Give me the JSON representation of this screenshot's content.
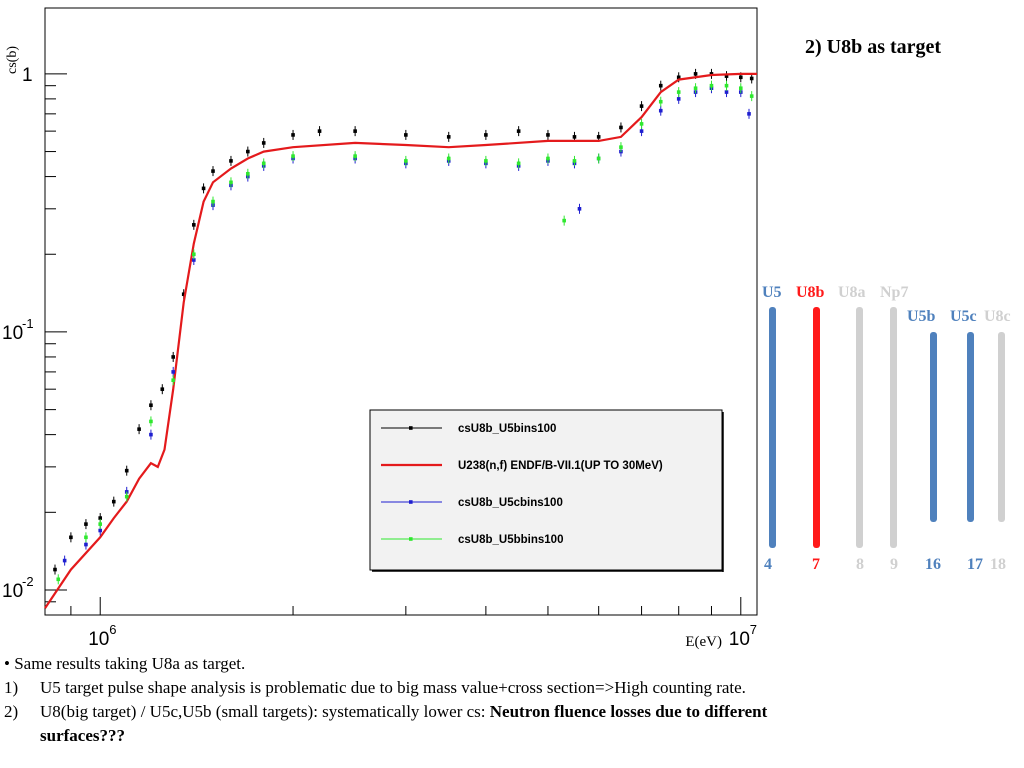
{
  "chart_data": {
    "type": "scatter",
    "xscale": "log",
    "yscale": "log",
    "xlim": [
      820000,
      10600000
    ],
    "ylim": [
      0.008,
      1.8
    ],
    "xlabel": "E(eV)",
    "ylabel": "cs(b)",
    "x_ticks": [
      {
        "value": 1000000,
        "label": "10",
        "exp": "6"
      },
      {
        "value": 10000000,
        "label": "10",
        "exp": "7"
      }
    ],
    "y_ticks": [
      {
        "value": 0.01,
        "label": "10",
        "exp": "-2"
      },
      {
        "value": 0.1,
        "label": "10",
        "exp": "-1"
      },
      {
        "value": 1,
        "label": "1",
        "exp": ""
      }
    ],
    "legend_position": "bottom-right",
    "series": [
      {
        "name": "csU8b_U5bins100",
        "color": "#000000",
        "kind": "points",
        "points": [
          [
            850000,
            0.012
          ],
          [
            900000,
            0.016
          ],
          [
            950000,
            0.018
          ],
          [
            1000000,
            0.019
          ],
          [
            1050000,
            0.022
          ],
          [
            1100000,
            0.029
          ],
          [
            1150000,
            0.042
          ],
          [
            1200000,
            0.052
          ],
          [
            1250000,
            0.06
          ],
          [
            1300000,
            0.08
          ],
          [
            1350000,
            0.14
          ],
          [
            1400000,
            0.26
          ],
          [
            1450000,
            0.36
          ],
          [
            1500000,
            0.42
          ],
          [
            1600000,
            0.46
          ],
          [
            1700000,
            0.5
          ],
          [
            1800000,
            0.54
          ],
          [
            2000000,
            0.58
          ],
          [
            2200000,
            0.6
          ],
          [
            2500000,
            0.6
          ],
          [
            3000000,
            0.58
          ],
          [
            3500000,
            0.57
          ],
          [
            4000000,
            0.58
          ],
          [
            4500000,
            0.6
          ],
          [
            5000000,
            0.58
          ],
          [
            5500000,
            0.57
          ],
          [
            6000000,
            0.57
          ],
          [
            6500000,
            0.62
          ],
          [
            7000000,
            0.75
          ],
          [
            7500000,
            0.9
          ],
          [
            8000000,
            0.97
          ],
          [
            8500000,
            1.0
          ],
          [
            9000000,
            1.0
          ],
          [
            9500000,
            0.98
          ],
          [
            10000000,
            0.97
          ],
          [
            10400000,
            0.96
          ]
        ]
      },
      {
        "name": "U238(n,f) ENDF/B-VII.1(UP TO 30MeV)",
        "color": "#e41a1c",
        "kind": "line",
        "points": [
          [
            820000,
            0.0085
          ],
          [
            900000,
            0.012
          ],
          [
            1000000,
            0.016
          ],
          [
            1050000,
            0.019
          ],
          [
            1100000,
            0.022
          ],
          [
            1150000,
            0.027
          ],
          [
            1200000,
            0.031
          ],
          [
            1230000,
            0.03
          ],
          [
            1260000,
            0.035
          ],
          [
            1300000,
            0.06
          ],
          [
            1350000,
            0.13
          ],
          [
            1400000,
            0.22
          ],
          [
            1450000,
            0.32
          ],
          [
            1500000,
            0.38
          ],
          [
            1600000,
            0.43
          ],
          [
            1700000,
            0.47
          ],
          [
            1800000,
            0.5
          ],
          [
            2000000,
            0.52
          ],
          [
            2500000,
            0.54
          ],
          [
            3000000,
            0.53
          ],
          [
            3500000,
            0.52
          ],
          [
            4000000,
            0.53
          ],
          [
            5000000,
            0.55
          ],
          [
            6000000,
            0.55
          ],
          [
            6500000,
            0.57
          ],
          [
            7000000,
            0.68
          ],
          [
            7500000,
            0.85
          ],
          [
            8000000,
            0.95
          ],
          [
            9000000,
            0.99
          ],
          [
            10000000,
            1.0
          ],
          [
            10600000,
            1.0
          ]
        ]
      },
      {
        "name": "csU8b_U5cbins100",
        "color": "#1f1fd0",
        "kind": "points",
        "points": [
          [
            880000,
            0.013
          ],
          [
            950000,
            0.015
          ],
          [
            1000000,
            0.017
          ],
          [
            1100000,
            0.024
          ],
          [
            1200000,
            0.04
          ],
          [
            1300000,
            0.07
          ],
          [
            1400000,
            0.19
          ],
          [
            1500000,
            0.31
          ],
          [
            1600000,
            0.37
          ],
          [
            1700000,
            0.4
          ],
          [
            1800000,
            0.44
          ],
          [
            2000000,
            0.47
          ],
          [
            2500000,
            0.47
          ],
          [
            3000000,
            0.45
          ],
          [
            3500000,
            0.46
          ],
          [
            4000000,
            0.45
          ],
          [
            4500000,
            0.44
          ],
          [
            5000000,
            0.46
          ],
          [
            5500000,
            0.45
          ],
          [
            5600000,
            0.3
          ],
          [
            6000000,
            0.47
          ],
          [
            6500000,
            0.5
          ],
          [
            7000000,
            0.6
          ],
          [
            7500000,
            0.72
          ],
          [
            8000000,
            0.8
          ],
          [
            8500000,
            0.85
          ],
          [
            9000000,
            0.88
          ],
          [
            9500000,
            0.85
          ],
          [
            10000000,
            0.85
          ],
          [
            10300000,
            0.7
          ]
        ]
      },
      {
        "name": "csU8b_U5bbins100",
        "color": "#2ee82e",
        "kind": "points",
        "points": [
          [
            860000,
            0.011
          ],
          [
            950000,
            0.016
          ],
          [
            1000000,
            0.018
          ],
          [
            1100000,
            0.023
          ],
          [
            1200000,
            0.045
          ],
          [
            1300000,
            0.065
          ],
          [
            1400000,
            0.2
          ],
          [
            1500000,
            0.32
          ],
          [
            1600000,
            0.38
          ],
          [
            1700000,
            0.41
          ],
          [
            1800000,
            0.45
          ],
          [
            2000000,
            0.48
          ],
          [
            2500000,
            0.48
          ],
          [
            3000000,
            0.46
          ],
          [
            3500000,
            0.47
          ],
          [
            4000000,
            0.46
          ],
          [
            4500000,
            0.45
          ],
          [
            5000000,
            0.47
          ],
          [
            5300000,
            0.27
          ],
          [
            5500000,
            0.46
          ],
          [
            6000000,
            0.47
          ],
          [
            6500000,
            0.52
          ],
          [
            7000000,
            0.64
          ],
          [
            7500000,
            0.78
          ],
          [
            8000000,
            0.85
          ],
          [
            8500000,
            0.88
          ],
          [
            9000000,
            0.9
          ],
          [
            9500000,
            0.9
          ],
          [
            10000000,
            0.88
          ],
          [
            10400000,
            0.82
          ]
        ]
      }
    ]
  },
  "side": {
    "title": "2) U8b as target",
    "targets": [
      {
        "label": "U5",
        "number": "4",
        "color": "#4f81bd"
      },
      {
        "label": "U8b",
        "number": "7",
        "color": "#ff1a1a"
      },
      {
        "label": "U8a",
        "number": "8",
        "color": "#d0d0d0"
      },
      {
        "label": "Np7",
        "number": "9",
        "color": "#d0d0d0"
      },
      {
        "label": "U5b",
        "number": "16",
        "color": "#4f81bd"
      },
      {
        "label": "U5c",
        "number": "17",
        "color": "#4f81bd"
      },
      {
        "label": "U8c",
        "number": "18",
        "color": "#d0d0d0"
      }
    ]
  },
  "notes": {
    "bullet": "•",
    "line0": "Same results taking U8a as target.",
    "n1": "1)",
    "line1": "U5 target pulse shape analysis is problematic due to big mass value+cross section=>High counting rate.",
    "n2": "2)",
    "line2_plain": "U8(big target) / U5c,U5b (small targets): systematically lower cs: ",
    "line2_bold": "Neutron fluence losses due to different",
    "line2_cont": "surfaces???"
  }
}
